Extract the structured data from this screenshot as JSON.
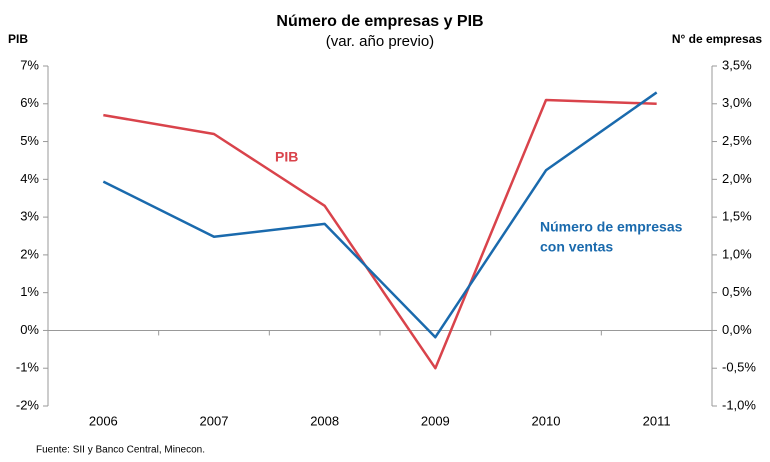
{
  "chart_data": {
    "type": "line",
    "title": "Número de empresas y PIB",
    "subtitle": "(var. año previo)",
    "ylabel": "PIB",
    "y2label": "N° de empresas",
    "source": "Fuente: SII y Banco Central, Minecon.",
    "categories": [
      "2006",
      "2007",
      "2008",
      "2009",
      "2010",
      "2011"
    ],
    "series": [
      {
        "name": "PIB",
        "color": "#d9434b",
        "values": [
          5.7,
          5.2,
          3.3,
          -1.0,
          6.1,
          6.0
        ]
      },
      {
        "name": [
          "Número de empresas",
          "con ventas"
        ],
        "color": "#1a6aad",
        "axis": "y2",
        "values": [
          1.97,
          1.24,
          1.41,
          -0.09,
          2.12,
          3.15
        ]
      }
    ],
    "ylim": [
      -2,
      7
    ],
    "yticks": [
      {
        "value": -2,
        "label": "-2%"
      },
      {
        "value": -1,
        "label": "-1%"
      },
      {
        "value": 0,
        "label": "0%"
      },
      {
        "value": 1,
        "label": "1%"
      },
      {
        "value": 2,
        "label": "2%"
      },
      {
        "value": 3,
        "label": "3%"
      },
      {
        "value": 4,
        "label": "4%"
      },
      {
        "value": 5,
        "label": "5%"
      },
      {
        "value": 6,
        "label": "6%"
      },
      {
        "value": 7,
        "label": "7%"
      }
    ],
    "y2lim": [
      -1,
      3.5
    ],
    "y2ticks": [
      {
        "value": -1,
        "label": "-1,0%"
      },
      {
        "value": -0.5,
        "label": "-0,5%"
      },
      {
        "value": 0,
        "label": "0,0%"
      },
      {
        "value": 0.5,
        "label": "0,5%"
      },
      {
        "value": 1,
        "label": "1,0%"
      },
      {
        "value": 1.5,
        "label": "1,5%"
      },
      {
        "value": 2,
        "label": "2,0%"
      },
      {
        "value": 2.5,
        "label": "2,5%"
      },
      {
        "value": 3,
        "label": "3,0%"
      },
      {
        "value": 3.5,
        "label": "3,5%"
      }
    ]
  }
}
